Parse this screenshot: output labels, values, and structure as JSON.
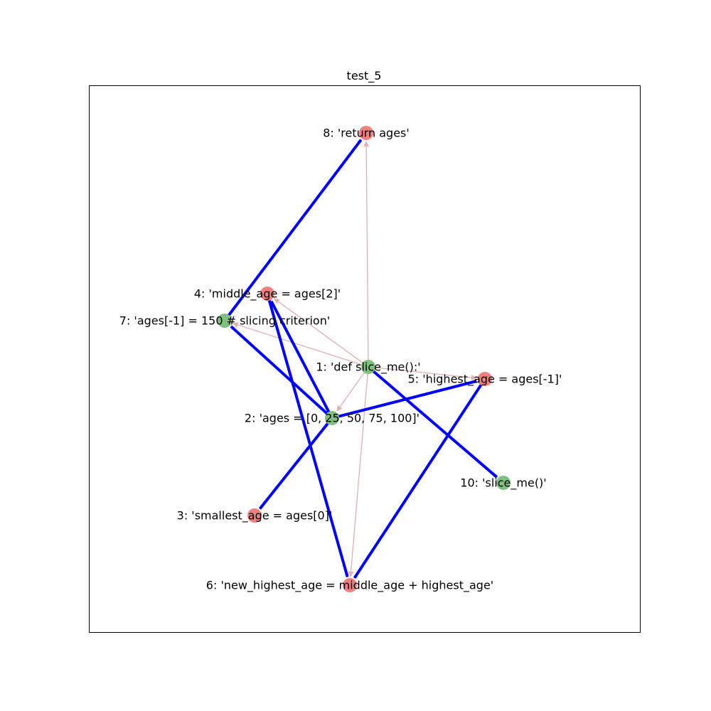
{
  "title": "test_5",
  "colors": {
    "node_green": "#7fbf7f",
    "node_red": "#f08080",
    "edge_strong": "#0000ff",
    "edge_weak": "#e0b0b4"
  },
  "nodes": [
    {
      "id": "1",
      "label": "1: 'def slice_me():'",
      "color": "green"
    },
    {
      "id": "2",
      "label": "2: 'ages = [0, 25, 50, 75, 100]'",
      "color": "green"
    },
    {
      "id": "3",
      "label": "3: 'smallest_age = ages[0]'",
      "color": "red"
    },
    {
      "id": "4",
      "label": "4: 'middle_age = ages[2]'",
      "color": "red"
    },
    {
      "id": "5",
      "label": "5: 'highest_age = ages[-1]'",
      "color": "red"
    },
    {
      "id": "6",
      "label": "6: 'new_highest_age = middle_age + highest_age'",
      "color": "red"
    },
    {
      "id": "7",
      "label": "7: 'ages[-1] = 150 # slicing criterion'",
      "color": "green"
    },
    {
      "id": "8",
      "label": "8: 'return ages'",
      "color": "red"
    },
    {
      "id": "10",
      "label": "10: 'slice_me()'",
      "color": "green"
    }
  ],
  "edges": [
    {
      "from": "1",
      "to": "2",
      "kind": "weak"
    },
    {
      "from": "1",
      "to": "4",
      "kind": "weak"
    },
    {
      "from": "1",
      "to": "5",
      "kind": "weak"
    },
    {
      "from": "1",
      "to": "6",
      "kind": "weak"
    },
    {
      "from": "1",
      "to": "7",
      "kind": "weak"
    },
    {
      "from": "1",
      "to": "8",
      "kind": "weak"
    },
    {
      "from": "1",
      "to": "10",
      "kind": "strong"
    },
    {
      "from": "2",
      "to": "3",
      "kind": "strong"
    },
    {
      "from": "2",
      "to": "4",
      "kind": "strong"
    },
    {
      "from": "2",
      "to": "5",
      "kind": "strong"
    },
    {
      "from": "2",
      "to": "7",
      "kind": "strong"
    },
    {
      "from": "4",
      "to": "6",
      "kind": "strong"
    },
    {
      "from": "5",
      "to": "6",
      "kind": "strong"
    },
    {
      "from": "7",
      "to": "8",
      "kind": "strong"
    }
  ]
}
